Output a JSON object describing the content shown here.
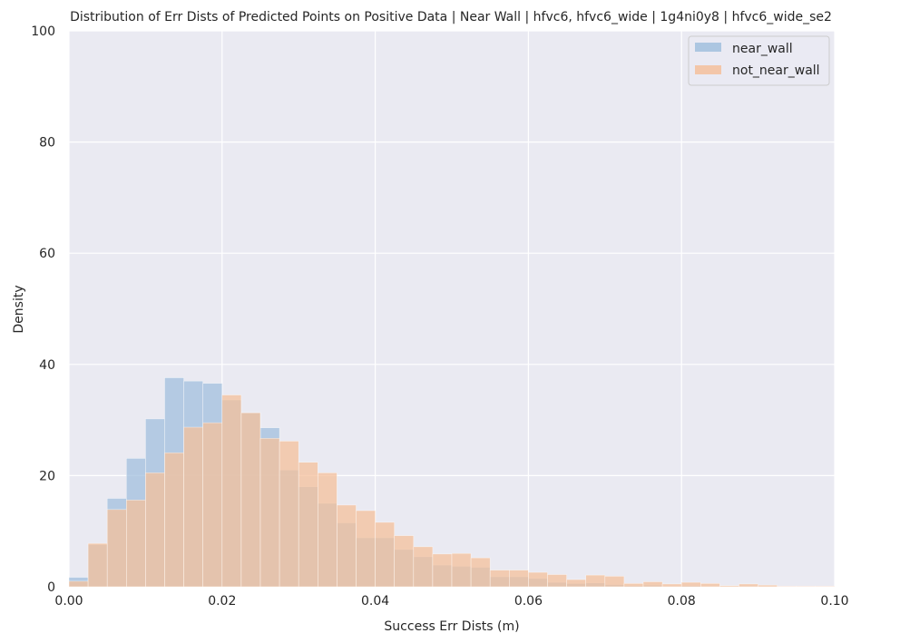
{
  "chart_data": {
    "type": "bar",
    "title": "Distribution of Err Dists of Predicted Points on Positive Data | Near Wall | hfvc6, hfvc6_wide | 1g4ni0y8 | hfvc6_wide_se2",
    "xlabel": "Success Err Dists (m)",
    "ylabel": "Density",
    "xlim": [
      0,
      0.1
    ],
    "ylim": [
      0,
      100
    ],
    "xticks": [
      "0.00",
      "0.02",
      "0.04",
      "0.06",
      "0.08",
      "0.10"
    ],
    "yticks": [
      "0",
      "20",
      "40",
      "60",
      "80",
      "100"
    ],
    "grid": true,
    "legend_position": "top-right",
    "bin_width": 0.0025,
    "bin_edges": [
      0,
      0.0025,
      0.005,
      0.0075,
      0.01,
      0.0125,
      0.015,
      0.0175,
      0.02,
      0.0225,
      0.025,
      0.0275,
      0.03,
      0.0325,
      0.035,
      0.0375,
      0.04,
      0.0425,
      0.045,
      0.0475,
      0.05,
      0.0525,
      0.055,
      0.0575,
      0.06,
      0.0625,
      0.065,
      0.0675,
      0.07,
      0.0725,
      0.075,
      0.0775,
      0.08,
      0.0825,
      0.085,
      0.0875,
      0.09,
      0.0925,
      0.095,
      0.0975,
      0.1
    ],
    "series": [
      {
        "name": "near_wall",
        "color": "#a1bfdd",
        "values": [
          1.7,
          7.6,
          15.9,
          23.1,
          30.2,
          37.6,
          37.0,
          36.6,
          33.6,
          31.3,
          28.6,
          21.0,
          18.0,
          15.0,
          11.5,
          8.8,
          8.8,
          6.7,
          5.4,
          3.9,
          3.7,
          3.5,
          1.8,
          1.8,
          1.5,
          0.8,
          0.6,
          0.7,
          0.4,
          0.2,
          0.3,
          0.1,
          0.2,
          0.1,
          0.05,
          0.1,
          0.05,
          0.0,
          0.0,
          0.0
        ]
      },
      {
        "name": "not_near_wall",
        "color": "#f4c09b",
        "values": [
          1.0,
          7.8,
          13.9,
          15.6,
          20.5,
          24.1,
          28.7,
          29.5,
          34.5,
          31.3,
          26.7,
          26.2,
          22.4,
          20.5,
          14.7,
          13.7,
          11.6,
          9.2,
          7.2,
          5.9,
          6.0,
          5.2,
          3.0,
          3.0,
          2.6,
          2.2,
          1.3,
          2.1,
          1.9,
          0.6,
          0.9,
          0.5,
          0.8,
          0.6,
          0.2,
          0.5,
          0.3,
          0.1,
          0.1,
          0.1
        ]
      }
    ]
  }
}
